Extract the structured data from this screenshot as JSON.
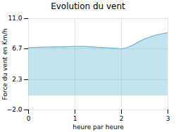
{
  "chart_data": {
    "type": "area",
    "title": "Evolution du vent",
    "xlabel": "heure par heure",
    "ylabel": "Force du vent en Km/h",
    "color": "#6ab8d8",
    "x": [
      0.0,
      0.083,
      0.167,
      0.25,
      0.333,
      0.417,
      0.5,
      0.583,
      0.667,
      0.75,
      0.833,
      0.917,
      1.0,
      1.083,
      1.167,
      1.25,
      1.333,
      1.417,
      1.5,
      1.583,
      1.667,
      1.75,
      1.833,
      1.917,
      2.0,
      2.083,
      2.167,
      2.25,
      2.333,
      2.417,
      2.5,
      2.583,
      2.667,
      2.75,
      2.833,
      2.917,
      3.0
    ],
    "values": [
      6.85,
      6.88,
      6.9,
      6.92,
      6.93,
      6.95,
      6.96,
      6.96,
      6.97,
      6.98,
      7.0,
      7.02,
      7.05,
      7.05,
      7.03,
      7.01,
      6.98,
      6.94,
      6.9,
      6.88,
      6.85,
      6.82,
      6.78,
      6.75,
      6.68,
      6.8,
      7.0,
      7.25,
      7.55,
      7.85,
      8.1,
      8.3,
      8.5,
      8.65,
      8.8,
      8.9,
      9.0
    ],
    "xlim": [
      0,
      3
    ],
    "xticks": [
      0,
      1,
      2,
      3
    ],
    "ylim": [
      -2.0,
      11.0
    ],
    "yticks": [
      {
        "value": -2.0,
        "label": "−2.0"
      },
      2.3,
      6.7,
      {
        "value": 11.0,
        "label": "11.0"
      }
    ],
    "grid": true
  }
}
